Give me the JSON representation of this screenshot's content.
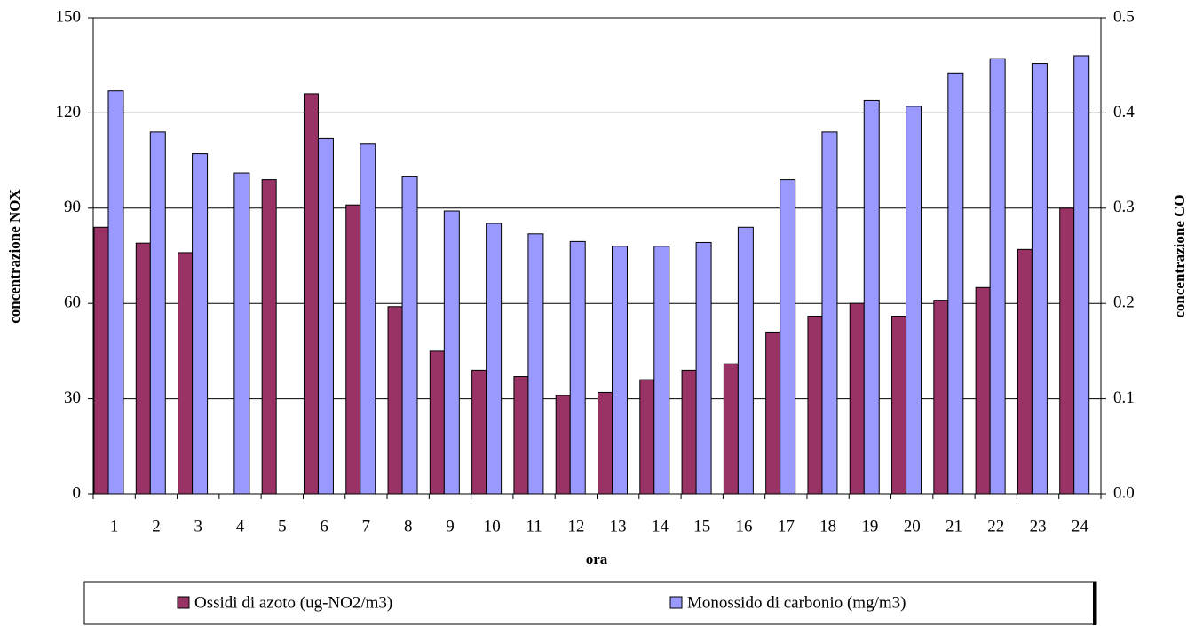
{
  "chart_data": {
    "type": "bar",
    "x_label": "ora",
    "y_label": "concentrazione NOX",
    "y2_label": "concentrazione CO",
    "categories": [
      "1",
      "2",
      "3",
      "4",
      "5",
      "6",
      "7",
      "8",
      "9",
      "10",
      "11",
      "12",
      "13",
      "14",
      "15",
      "16",
      "17",
      "18",
      "19",
      "20",
      "21",
      "22",
      "23",
      "24"
    ],
    "series": [
      {
        "name": "Ossidi di azoto (ug-NO2/m3)",
        "color": "#993366",
        "values": [
          84,
          79,
          76,
          null,
          99,
          126,
          91,
          59,
          45,
          39,
          37,
          31,
          32,
          36,
          39,
          41,
          51,
          56,
          60,
          56,
          61,
          65,
          77,
          90
        ]
      },
      {
        "name": "Monossido di carbonio (mg/m3)",
        "color": "#9999ff",
        "axis": "y2",
        "values": [
          0.423,
          0.38,
          0.357,
          0.337,
          null,
          0.373,
          0.368,
          0.333,
          0.297,
          0.284,
          0.273,
          0.265,
          0.26,
          0.26,
          0.264,
          0.28,
          0.33,
          0.38,
          0.413,
          0.407,
          0.442,
          0.457,
          0.452,
          0.46
        ]
      }
    ],
    "ylim": [
      0,
      150
    ],
    "yticks": [
      0,
      30,
      60,
      90,
      120,
      150
    ],
    "y2lim": [
      0,
      0.5
    ],
    "y2ticks": [
      {
        "value": 0,
        "label": "0.0"
      },
      0.1,
      0.2,
      0.3,
      0.4,
      0.5
    ],
    "grid": true,
    "legend": "bottom"
  }
}
